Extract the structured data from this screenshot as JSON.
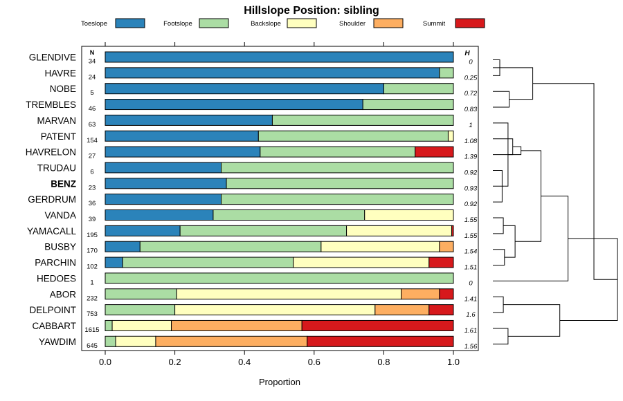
{
  "chart_data": {
    "type": "bar",
    "stacked": true,
    "orientation": "horizontal",
    "title": "Hillslope Position: sibling",
    "xlabel": "Proportion",
    "ylabel": "",
    "xlim": [
      0,
      1
    ],
    "x_ticks": [
      "0.0",
      "0.2",
      "0.4",
      "0.6",
      "0.8",
      "1.0"
    ],
    "x_tick_values": [
      0,
      0.2,
      0.4,
      0.6,
      0.8,
      1.0
    ],
    "n_header": "N",
    "h_header": "H",
    "legend_position": "top",
    "series": [
      {
        "name": "Toeslope",
        "color": "#2b83ba"
      },
      {
        "name": "Footslope",
        "color": "#abdda4"
      },
      {
        "name": "Backslope",
        "color": "#ffffbf"
      },
      {
        "name": "Shoulder",
        "color": "#fdae61"
      },
      {
        "name": "Summit",
        "color": "#d7191c"
      }
    ],
    "rows": [
      {
        "label": "GLENDIVE",
        "bold": false,
        "n": "34",
        "h": "0",
        "values": [
          1.0,
          0,
          0,
          0,
          0
        ]
      },
      {
        "label": "HAVRE",
        "bold": false,
        "n": "24",
        "h": "0.25",
        "values": [
          0.96,
          0.04,
          0,
          0,
          0
        ]
      },
      {
        "label": "NOBE",
        "bold": false,
        "n": "5",
        "h": "0.72",
        "values": [
          0.8,
          0.2,
          0,
          0,
          0
        ]
      },
      {
        "label": "TREMBLES",
        "bold": false,
        "n": "46",
        "h": "0.83",
        "values": [
          0.74,
          0.26,
          0,
          0,
          0
        ]
      },
      {
        "label": "MARVAN",
        "bold": false,
        "n": "63",
        "h": "1",
        "values": [
          0.48,
          0.52,
          0,
          0,
          0
        ]
      },
      {
        "label": "PATENT",
        "bold": false,
        "n": "154",
        "h": "1.08",
        "values": [
          0.44,
          0.545,
          0.015,
          0,
          0
        ]
      },
      {
        "label": "HAVRELON",
        "bold": false,
        "n": "27",
        "h": "1.39",
        "values": [
          0.445,
          0.445,
          0,
          0,
          0.11
        ]
      },
      {
        "label": "TRUDAU",
        "bold": false,
        "n": "6",
        "h": "0.92",
        "values": [
          0.333,
          0.667,
          0,
          0,
          0
        ]
      },
      {
        "label": "BENZ",
        "bold": true,
        "n": "23",
        "h": "0.93",
        "values": [
          0.348,
          0.652,
          0,
          0,
          0
        ]
      },
      {
        "label": "GERDRUM",
        "bold": false,
        "n": "36",
        "h": "0.92",
        "values": [
          0.333,
          0.667,
          0,
          0,
          0
        ]
      },
      {
        "label": "VANDA",
        "bold": false,
        "n": "39",
        "h": "1.55",
        "values": [
          0.31,
          0.435,
          0.255,
          0,
          0
        ]
      },
      {
        "label": "YAMACALL",
        "bold": false,
        "n": "195",
        "h": "1.55",
        "values": [
          0.215,
          0.478,
          0.302,
          0,
          0.005
        ]
      },
      {
        "label": "BUSBY",
        "bold": false,
        "n": "170",
        "h": "1.54",
        "values": [
          0.1,
          0.52,
          0.34,
          0.04,
          0
        ]
      },
      {
        "label": "PARCHIN",
        "bold": false,
        "n": "102",
        "h": "1.51",
        "values": [
          0.05,
          0.49,
          0.39,
          0,
          0.07
        ]
      },
      {
        "label": "HEDOES",
        "bold": false,
        "n": "1",
        "h": "0",
        "values": [
          0,
          1.0,
          0,
          0,
          0
        ]
      },
      {
        "label": "ABOR",
        "bold": false,
        "n": "232",
        "h": "1.41",
        "values": [
          0,
          0.205,
          0.645,
          0.11,
          0.04
        ]
      },
      {
        "label": "DELPOINT",
        "bold": false,
        "n": "753",
        "h": "1.6",
        "values": [
          0,
          0.2,
          0.575,
          0.155,
          0.07
        ]
      },
      {
        "label": "CABBART",
        "bold": false,
        "n": "1615",
        "h": "1.61",
        "values": [
          0,
          0.02,
          0.17,
          0.375,
          0.435
        ]
      },
      {
        "label": "YAWDIM",
        "bold": false,
        "n": "645",
        "h": "1.56",
        "values": [
          0,
          0.03,
          0.115,
          0.435,
          0.42
        ]
      }
    ],
    "dendrogram": {
      "merges": [
        [
          0,
          1,
          0.0
        ],
        [
          2,
          3,
          0.08
        ],
        [
          19,
          20,
          0.28
        ],
        [
          7,
          9,
          0.02
        ],
        [
          8,
          22,
          0.04
        ],
        [
          4,
          23,
          0.07
        ],
        [
          5,
          24,
          0.11
        ],
        [
          6,
          25,
          0.18
        ],
        [
          10,
          11,
          0.03
        ],
        [
          12,
          13,
          0.04
        ],
        [
          27,
          28,
          0.13
        ],
        [
          26,
          29,
          0.35
        ],
        [
          14,
          30,
          0.58
        ],
        [
          15,
          16,
          0.03
        ],
        [
          17,
          18,
          0.07
        ],
        [
          32,
          33,
          0.51
        ],
        [
          31,
          34,
          1.0
        ],
        [
          21,
          35,
          0.8
        ]
      ]
    }
  }
}
